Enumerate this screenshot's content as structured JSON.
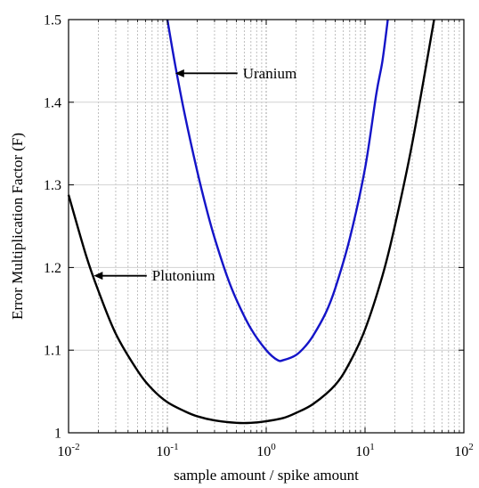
{
  "chart_data": {
    "type": "line",
    "title": "",
    "xlabel": "sample amount / spike amount",
    "ylabel": "Error Multiplication Factor (F)",
    "xscale": "log",
    "xlim": [
      0.01,
      100
    ],
    "ylim": [
      1.0,
      1.5
    ],
    "grid": true,
    "x_ticks": [
      {
        "base": "10",
        "exp": "-2",
        "value": 0.01
      },
      {
        "base": "10",
        "exp": "-1",
        "value": 0.1
      },
      {
        "base": "10",
        "exp": "0",
        "value": 1
      },
      {
        "base": "10",
        "exp": "1",
        "value": 10
      },
      {
        "base": "10",
        "exp": "2",
        "value": 100
      }
    ],
    "y_ticks": [
      "1",
      "1.1",
      "1.2",
      "1.3",
      "1.4",
      "1.5"
    ],
    "series": [
      {
        "name": "Plutonium",
        "color": "#000000",
        "x": [
          0.01,
          0.015,
          0.02,
          0.03,
          0.05,
          0.07,
          0.1,
          0.15,
          0.2,
          0.3,
          0.5,
          0.7,
          1,
          1.5,
          2,
          3,
          5,
          7,
          10,
          15,
          20,
          30,
          50
        ],
        "y": [
          1.288,
          1.215,
          1.172,
          1.12,
          1.075,
          1.053,
          1.037,
          1.026,
          1.02,
          1.015,
          1.012,
          1.012,
          1.014,
          1.018,
          1.024,
          1.035,
          1.058,
          1.085,
          1.125,
          1.19,
          1.25,
          1.35,
          1.5
        ]
      },
      {
        "name": "Uranium",
        "color": "#1414c8",
        "x": [
          0.1,
          0.12,
          0.15,
          0.2,
          0.25,
          0.3,
          0.4,
          0.5,
          0.7,
          1,
          1.3,
          1.5,
          2,
          2.5,
          3,
          4,
          5,
          7,
          10,
          13,
          15,
          17
        ],
        "y": [
          1.5,
          1.445,
          1.385,
          1.317,
          1.27,
          1.236,
          1.19,
          1.161,
          1.126,
          1.1,
          1.088,
          1.088,
          1.094,
          1.105,
          1.118,
          1.145,
          1.175,
          1.235,
          1.32,
          1.41,
          1.45,
          1.5
        ]
      }
    ],
    "annotations": [
      {
        "label": "Uranium",
        "arrow_to": [
          0.12,
          1.435
        ],
        "label_at": [
          0.58,
          1.435
        ]
      },
      {
        "label": "Plutonium",
        "arrow_to": [
          0.018,
          1.19
        ],
        "label_at": [
          0.07,
          1.19
        ]
      }
    ]
  }
}
